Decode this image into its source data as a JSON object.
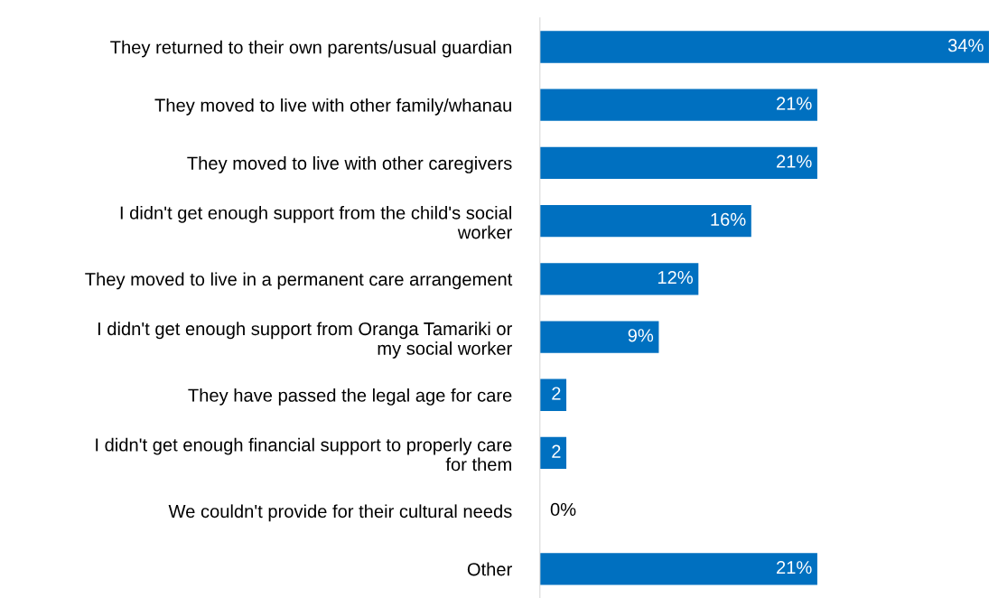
{
  "chart_data": {
    "type": "bar",
    "orientation": "horizontal",
    "categories": [
      "They returned to their own parents/usual guardian",
      "They moved to live with other family/whanau",
      "They moved to live with other caregivers",
      "I didn't get enough support from the child's social\nworker",
      "They moved to live in a permanent care arrangement",
      "I didn't get enough support from Oranga Tamariki or\nmy social worker",
      "They have passed the legal age for care",
      "I didn't get enough financial support to properly care\nfor them",
      "We couldn't provide for their cultural needs",
      "Other"
    ],
    "values": [
      34,
      21,
      21,
      16,
      12,
      9,
      2,
      2,
      0,
      21
    ],
    "value_labels": [
      "34%",
      "21%",
      "21%",
      "16%",
      "12%",
      "9%",
      "2",
      "2",
      "0%",
      "21%"
    ],
    "color": "#0070c0",
    "grid": false,
    "legend": false
  }
}
